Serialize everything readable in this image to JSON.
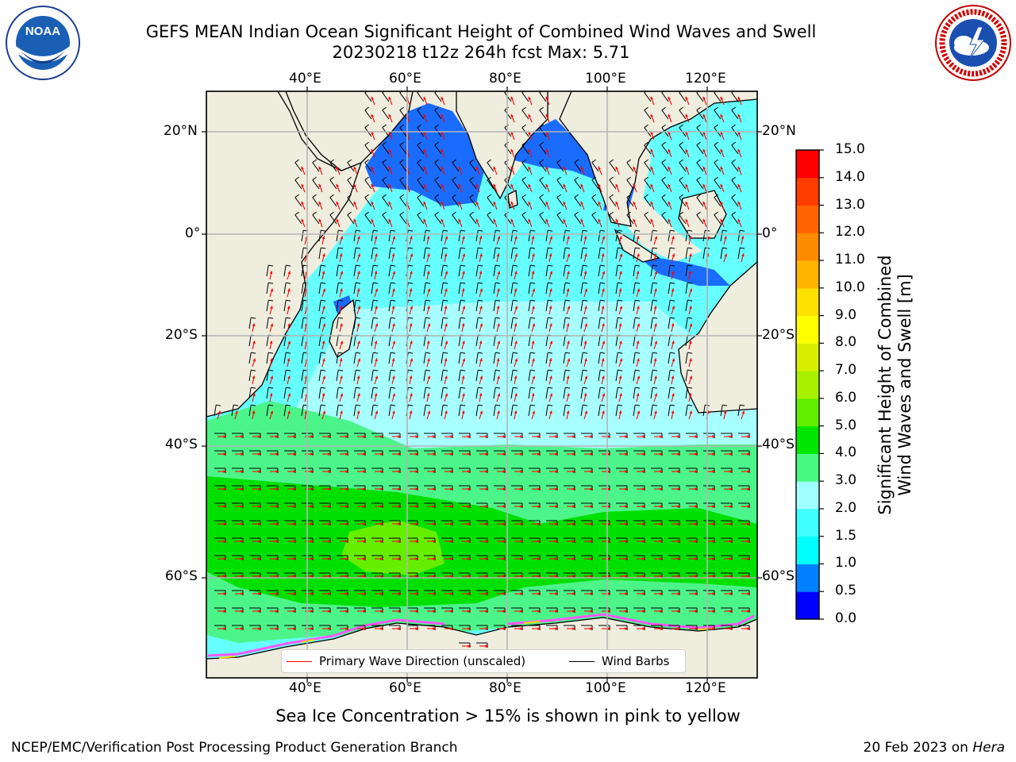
{
  "title": {
    "line1": "GEFS MEAN Indian Ocean Significant Height of Combined Wind Waves and Swell",
    "line2": "20230218 t12z 264h fcst   Max: 5.71"
  },
  "logos": {
    "left": "noaa-logo",
    "right": "nws-logo"
  },
  "map": {
    "lon_ticks": [
      "40°E",
      "60°E",
      "80°E",
      "100°E",
      "120°E"
    ],
    "lat_ticks": [
      "20°N",
      "0°",
      "20°S",
      "40°S",
      "60°S"
    ],
    "colors": {
      "land": "#efedde",
      "grid": "#b4b4b4",
      "wave_arrow": "#ff0000",
      "wind_barb": "#000000"
    }
  },
  "legend": {
    "wave": "Primary Wave Direction (unscaled)",
    "wind": "Wind Barbs"
  },
  "colorbar": {
    "title_line1": "Significant Height of Combined",
    "title_line2": "Wind Waves and Swell [m]",
    "ticks": [
      "0.0",
      "0.5",
      "1.0",
      "1.5",
      "2.0",
      "3.0",
      "4.0",
      "5.0",
      "6.0",
      "7.0",
      "8.0",
      "9.0",
      "10.0",
      "11.0",
      "12.0",
      "13.0",
      "14.0",
      "15.0"
    ],
    "colors": [
      "#0000ff",
      "#0080ff",
      "#00ffff",
      "#40ffff",
      "#a0ffff",
      "#48f880",
      "#00e600",
      "#62f000",
      "#a8f000",
      "#d8f000",
      "#ffff00",
      "#ffe000",
      "#ffb400",
      "#ff8c00",
      "#ff6400",
      "#ff3c00",
      "#ff0000"
    ]
  },
  "caption": "Sea Ice Concentration > 15% is shown in pink to yellow",
  "footer": {
    "left": "NCEP/EMC/Verification Post Processing Product Generation Branch",
    "right_prefix": "20 Feb 2023 on ",
    "right_host": "Hera"
  }
}
